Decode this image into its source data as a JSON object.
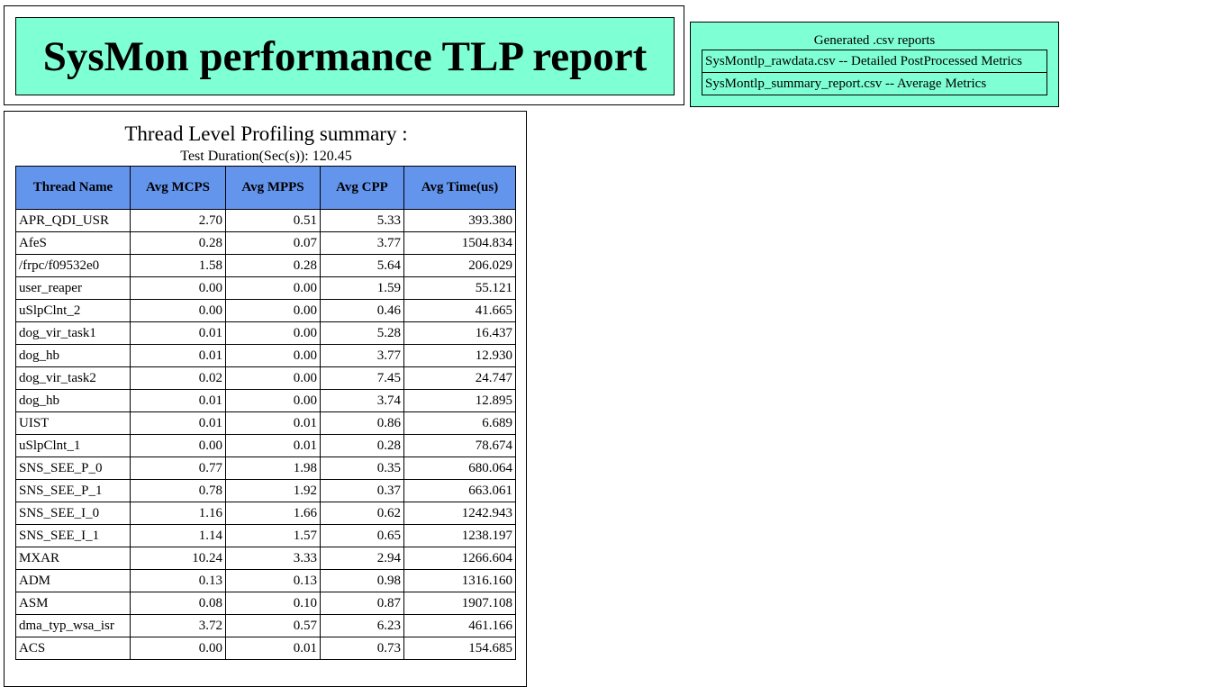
{
  "header": {
    "title": "SysMon performance TLP report"
  },
  "reports": {
    "caption": "Generated .csv reports",
    "links": [
      {
        "label": "SysMontlp_rawdata.csv -- Detailed PostProcessed Metrics"
      },
      {
        "label": "SysMontlp_summary_report.csv -- Average Metrics"
      }
    ]
  },
  "summary": {
    "title": "Thread Level Profiling summary :",
    "duration": "Test Duration(Sec(s)): 120.45",
    "columns": [
      "Thread Name",
      "Avg MCPS",
      "Avg MPPS",
      "Avg CPP",
      "Avg Time(us)"
    ],
    "rows": [
      [
        "APR_QDI_USR",
        "2.70",
        "0.51",
        "5.33",
        "393.380"
      ],
      [
        "AfeS",
        "0.28",
        "0.07",
        "3.77",
        "1504.834"
      ],
      [
        "/frpc/f09532e0",
        "1.58",
        "0.28",
        "5.64",
        "206.029"
      ],
      [
        "user_reaper",
        "0.00",
        "0.00",
        "1.59",
        "55.121"
      ],
      [
        "uSlpClnt_2",
        "0.00",
        "0.00",
        "0.46",
        "41.665"
      ],
      [
        "dog_vir_task1",
        "0.01",
        "0.00",
        "5.28",
        "16.437"
      ],
      [
        "dog_hb",
        "0.01",
        "0.00",
        "3.77",
        "12.930"
      ],
      [
        "dog_vir_task2",
        "0.02",
        "0.00",
        "7.45",
        "24.747"
      ],
      [
        "dog_hb",
        "0.01",
        "0.00",
        "3.74",
        "12.895"
      ],
      [
        "UIST",
        "0.01",
        "0.01",
        "0.86",
        "6.689"
      ],
      [
        "uSlpClnt_1",
        "0.00",
        "0.01",
        "0.28",
        "78.674"
      ],
      [
        "SNS_SEE_P_0",
        "0.77",
        "1.98",
        "0.35",
        "680.064"
      ],
      [
        "SNS_SEE_P_1",
        "0.78",
        "1.92",
        "0.37",
        "663.061"
      ],
      [
        "SNS_SEE_I_0",
        "1.16",
        "1.66",
        "0.62",
        "1242.943"
      ],
      [
        "SNS_SEE_I_1",
        "1.14",
        "1.57",
        "0.65",
        "1238.197"
      ],
      [
        "MXAR",
        "10.24",
        "3.33",
        "2.94",
        "1266.604"
      ],
      [
        "ADM",
        "0.13",
        "0.13",
        "0.98",
        "1316.160"
      ],
      [
        "ASM",
        "0.08",
        "0.10",
        "0.87",
        "1907.108"
      ],
      [
        "dma_typ_wsa_isr",
        "3.72",
        "0.57",
        "6.23",
        "461.166"
      ],
      [
        "ACS",
        "0.00",
        "0.01",
        "0.73",
        "154.685"
      ]
    ]
  }
}
